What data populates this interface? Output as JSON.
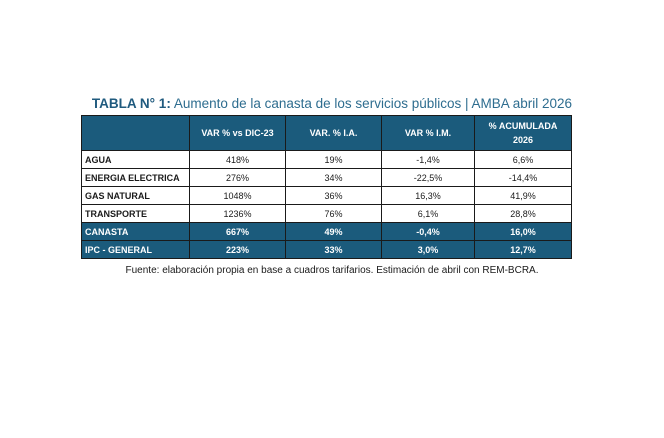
{
  "title": {
    "prefix": "TABLA N° 1:",
    "text": " Aumento de la canasta de los servicios públicos | AMBA abril 2026"
  },
  "table": {
    "headers": [
      "",
      "VAR % vs DIC-23",
      "VAR. % I.A.",
      "VAR % I.M.",
      "% ACUMULADA 2026"
    ],
    "rows": [
      {
        "label": "AGUA",
        "cells": [
          "418%",
          "19%",
          "-1,4%",
          "6,6%"
        ]
      },
      {
        "label": "ENERGIA ELECTRICA",
        "cells": [
          "276%",
          "34%",
          "-22,5%",
          "-14,4%"
        ]
      },
      {
        "label": "GAS NATURAL",
        "cells": [
          "1048%",
          "36%",
          "16,3%",
          "41,9%"
        ]
      },
      {
        "label": "TRANSPORTE",
        "cells": [
          "1236%",
          "76%",
          "6,1%",
          "28,8%"
        ]
      },
      {
        "label": "CANASTA",
        "cells": [
          "667%",
          "49%",
          "-0,4%",
          "16,0%"
        ]
      },
      {
        "label": "IPC - GENERAL",
        "cells": [
          "223%",
          "33%",
          "3,0%",
          "12,7%"
        ]
      }
    ],
    "highlight_color": "#1b5b7c"
  },
  "source": "Fuente: elaboración propia en base a cuadros tarifarios. Estimación de abril con REM-BCRA."
}
